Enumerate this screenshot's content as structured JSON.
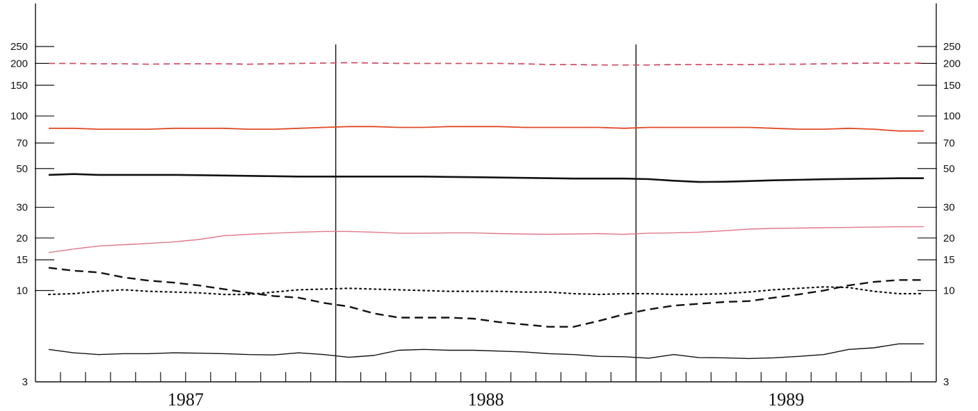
{
  "chart_data": {
    "type": "line",
    "title": "",
    "xlabel": "",
    "ylabel": "",
    "yscale": "log",
    "ylim": [
      3,
      250
    ],
    "y_ticks": [
      3,
      10,
      15,
      20,
      30,
      50,
      70,
      100,
      150,
      200,
      250
    ],
    "x_year_labels": [
      "1987",
      "1988",
      "1989"
    ],
    "x_start": "1987-01",
    "months": 36,
    "grid": false,
    "legend": "none",
    "year_dividers": true,
    "series": [
      {
        "color": "#d0506a",
        "style": "dashed",
        "stroke_width": 1.8,
        "values": [
          200,
          200,
          199,
          199,
          198,
          199,
          199,
          199,
          198,
          199,
          200,
          201,
          202,
          201,
          200,
          200,
          200,
          200,
          200,
          199,
          197,
          197,
          196,
          196,
          196,
          197,
          197,
          197,
          197,
          198,
          198,
          199,
          200,
          201,
          200,
          201
        ]
      },
      {
        "color": "#e04a26",
        "style": "solid",
        "stroke_width": 1.8,
        "values": [
          85,
          85,
          84,
          84,
          84,
          85,
          85,
          85,
          84,
          84,
          85,
          86,
          87,
          87,
          86,
          86,
          87,
          87,
          87,
          86,
          86,
          86,
          86,
          85,
          86,
          86,
          86,
          86,
          86,
          85,
          84,
          84,
          85,
          84,
          82,
          82
        ]
      },
      {
        "color": "#111111",
        "style": "solid",
        "stroke_width": 2.6,
        "values": [
          46,
          46.5,
          46,
          46,
          46,
          46,
          45.8,
          45.6,
          45.4,
          45.2,
          45,
          45,
          45,
          45,
          45,
          45,
          44.8,
          44.6,
          44.4,
          44.2,
          44,
          43.8,
          43.8,
          43.8,
          43.5,
          42.6,
          41.9,
          42,
          42.4,
          42.8,
          43.1,
          43.4,
          43.6,
          43.8,
          44,
          44
        ]
      },
      {
        "color": "#e07888",
        "style": "solid",
        "stroke_width": 1.4,
        "values": [
          16.5,
          17.3,
          18,
          18.3,
          18.6,
          19,
          19.6,
          20.6,
          21,
          21.3,
          21.6,
          21.8,
          21.8,
          21.6,
          21.3,
          21.3,
          21.4,
          21.4,
          21.2,
          21.1,
          21,
          21.1,
          21.2,
          21,
          21.3,
          21.4,
          21.6,
          22,
          22.5,
          22.7,
          22.8,
          22.9,
          23,
          23.1,
          23.2,
          23.2
        ]
      },
      {
        "color": "#111111",
        "style": "loose-dashed",
        "stroke_width": 2.4,
        "values": [
          13.5,
          13,
          12.7,
          11.9,
          11.4,
          11.1,
          10.7,
          10.2,
          9.7,
          9.3,
          9.1,
          8.5,
          8.1,
          7.4,
          7,
          7,
          7,
          6.9,
          6.6,
          6.4,
          6.2,
          6.2,
          6.7,
          7.3,
          7.8,
          8.2,
          8.4,
          8.6,
          8.7,
          9.1,
          9.5,
          10,
          10.7,
          11.2,
          11.5,
          11.5
        ]
      },
      {
        "color": "#111111",
        "style": "dotted",
        "stroke_width": 2.2,
        "values": [
          9.5,
          9.6,
          9.9,
          10.1,
          9.9,
          9.8,
          9.7,
          9.5,
          9.5,
          9.8,
          10.1,
          10.2,
          10.3,
          10.2,
          10.1,
          10,
          9.9,
          9.9,
          9.9,
          9.8,
          9.8,
          9.6,
          9.5,
          9.6,
          9.6,
          9.5,
          9.5,
          9.6,
          9.8,
          10.1,
          10.3,
          10.5,
          10.4,
          9.9,
          9.6,
          9.6
        ]
      },
      {
        "color": "#111111",
        "style": "solid",
        "stroke_width": 1.4,
        "values": [
          4.6,
          4.4,
          4.3,
          4.35,
          4.35,
          4.4,
          4.38,
          4.35,
          4.3,
          4.28,
          4.4,
          4.3,
          4.15,
          4.25,
          4.55,
          4.6,
          4.55,
          4.55,
          4.5,
          4.45,
          4.35,
          4.3,
          4.2,
          4.18,
          4.1,
          4.3,
          4.13,
          4.12,
          4.08,
          4.12,
          4.2,
          4.3,
          4.6,
          4.7,
          4.95,
          4.95
        ]
      }
    ]
  }
}
